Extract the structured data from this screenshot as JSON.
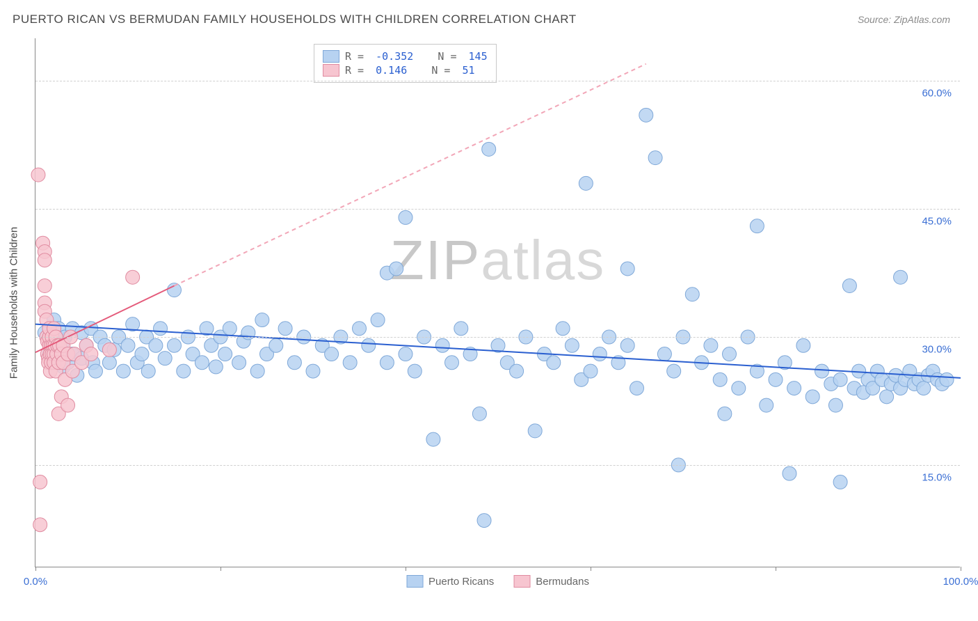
{
  "title": "PUERTO RICAN VS BERMUDAN FAMILY HOUSEHOLDS WITH CHILDREN CORRELATION CHART",
  "source_label": "Source:",
  "source_name": "ZipAtlas.com",
  "watermark": "ZIPatlas",
  "chart": {
    "type": "scatter",
    "y_axis_title": "Family Households with Children",
    "xlim": [
      0,
      100
    ],
    "ylim": [
      3,
      65
    ],
    "x_ticks": [
      0,
      20,
      40,
      60,
      80,
      100
    ],
    "x_tick_labels": [
      "0.0%",
      "",
      "",
      "",
      "",
      "100.0%"
    ],
    "y_ticks": [
      15,
      30,
      45,
      60
    ],
    "y_tick_labels": [
      "15.0%",
      "30.0%",
      "45.0%",
      "60.0%"
    ],
    "grid_color": "#d0d0d0",
    "axis_color": "#888888",
    "background": "#ffffff",
    "series": [
      {
        "name": "Puerto Ricans",
        "fill": "#b7d2f1",
        "stroke": "#7fa8d8",
        "marker_size": 10,
        "marker_opacity": 0.85,
        "R": "-0.352",
        "N": "145",
        "trend": {
          "x1": 0,
          "y1": 31.5,
          "x2": 100,
          "y2": 25.2,
          "color": "#2a5fd0",
          "width": 2,
          "dash": "none"
        },
        "data": [
          [
            1,
            30.5
          ],
          [
            1.5,
            28
          ],
          [
            2,
            32
          ],
          [
            2,
            27
          ],
          [
            2.2,
            29
          ],
          [
            2.5,
            31
          ],
          [
            3,
            26.5
          ],
          [
            3,
            29.5
          ],
          [
            3.2,
            30
          ],
          [
            3.5,
            27
          ],
          [
            4,
            28
          ],
          [
            4,
            31
          ],
          [
            4.5,
            25.5
          ],
          [
            5,
            30.5
          ],
          [
            5,
            27.5
          ],
          [
            5.5,
            29
          ],
          [
            6,
            31
          ],
          [
            6.2,
            27
          ],
          [
            6.5,
            26
          ],
          [
            7,
            30
          ],
          [
            7.5,
            29
          ],
          [
            8,
            27
          ],
          [
            8.5,
            28.5
          ],
          [
            9,
            30
          ],
          [
            9.5,
            26
          ],
          [
            10,
            29
          ],
          [
            10.5,
            31.5
          ],
          [
            11,
            27
          ],
          [
            11.5,
            28
          ],
          [
            12,
            30
          ],
          [
            12.2,
            26
          ],
          [
            13,
            29
          ],
          [
            13.5,
            31
          ],
          [
            14,
            27.5
          ],
          [
            15,
            35.5
          ],
          [
            15,
            29
          ],
          [
            16,
            26
          ],
          [
            16.5,
            30
          ],
          [
            17,
            28
          ],
          [
            18,
            27
          ],
          [
            18.5,
            31
          ],
          [
            19,
            29
          ],
          [
            19.5,
            26.5
          ],
          [
            20,
            30
          ],
          [
            20.5,
            28
          ],
          [
            21,
            31
          ],
          [
            22,
            27
          ],
          [
            22.5,
            29.5
          ],
          [
            23,
            30.5
          ],
          [
            24,
            26
          ],
          [
            24.5,
            32
          ],
          [
            25,
            28
          ],
          [
            26,
            29
          ],
          [
            27,
            31
          ],
          [
            28,
            27
          ],
          [
            29,
            30
          ],
          [
            30,
            26
          ],
          [
            31,
            29
          ],
          [
            32,
            28
          ],
          [
            33,
            30
          ],
          [
            34,
            27
          ],
          [
            35,
            31
          ],
          [
            36,
            29
          ],
          [
            37,
            32
          ],
          [
            38,
            27
          ],
          [
            38,
            37.5
          ],
          [
            39,
            38
          ],
          [
            40,
            44
          ],
          [
            40,
            28
          ],
          [
            41,
            26
          ],
          [
            42,
            30
          ],
          [
            43,
            18
          ],
          [
            44,
            29
          ],
          [
            45,
            27
          ],
          [
            46,
            31
          ],
          [
            47,
            28
          ],
          [
            48,
            21
          ],
          [
            48.5,
            8.5
          ],
          [
            49,
            52
          ],
          [
            50,
            29
          ],
          [
            51,
            27
          ],
          [
            52,
            26
          ],
          [
            53,
            30
          ],
          [
            54,
            19
          ],
          [
            55,
            28
          ],
          [
            56,
            27
          ],
          [
            57,
            31
          ],
          [
            58,
            29
          ],
          [
            59,
            25
          ],
          [
            59.5,
            48
          ],
          [
            60,
            26
          ],
          [
            61,
            28
          ],
          [
            62,
            30
          ],
          [
            63,
            27
          ],
          [
            64,
            29
          ],
          [
            64,
            38
          ],
          [
            65,
            24
          ],
          [
            66,
            56
          ],
          [
            67,
            51
          ],
          [
            68,
            28
          ],
          [
            69,
            26
          ],
          [
            69.5,
            15
          ],
          [
            70,
            30
          ],
          [
            71,
            35
          ],
          [
            72,
            27
          ],
          [
            73,
            29
          ],
          [
            74,
            25
          ],
          [
            74.5,
            21
          ],
          [
            75,
            28
          ],
          [
            76,
            24
          ],
          [
            77,
            30
          ],
          [
            78,
            26
          ],
          [
            78,
            43
          ],
          [
            79,
            22
          ],
          [
            80,
            25
          ],
          [
            81,
            27
          ],
          [
            81.5,
            14
          ],
          [
            82,
            24
          ],
          [
            83,
            29
          ],
          [
            84,
            23
          ],
          [
            85,
            26
          ],
          [
            86,
            24.5
          ],
          [
            86.5,
            22
          ],
          [
            87,
            25
          ],
          [
            87,
            13
          ],
          [
            88,
            36
          ],
          [
            88.5,
            24
          ],
          [
            89,
            26
          ],
          [
            89.5,
            23.5
          ],
          [
            90,
            25
          ],
          [
            90.5,
            24
          ],
          [
            91,
            26
          ],
          [
            91.5,
            25
          ],
          [
            92,
            23
          ],
          [
            92.5,
            24.5
          ],
          [
            93,
            25.5
          ],
          [
            93.5,
            37
          ],
          [
            93.5,
            24
          ],
          [
            94,
            25
          ],
          [
            94.5,
            26
          ],
          [
            95,
            24.5
          ],
          [
            95.5,
            25
          ],
          [
            96,
            24
          ],
          [
            96.5,
            25.5
          ],
          [
            97,
            26
          ],
          [
            97.5,
            25
          ],
          [
            98,
            24.5
          ],
          [
            98.5,
            25
          ]
        ]
      },
      {
        "name": "Bermudans",
        "fill": "#f7c5d0",
        "stroke": "#e08ba0",
        "marker_size": 10,
        "marker_opacity": 0.85,
        "R": "0.146",
        "N": "51",
        "trend": {
          "x1": 0,
          "y1": 28.2,
          "x2": 15,
          "y2": 36,
          "color": "#e45a7a",
          "width": 2,
          "dash": "none",
          "extend": {
            "x2": 66,
            "y2": 62,
            "dash": "6,5",
            "color": "#f2a6b7"
          }
        },
        "data": [
          [
            0.3,
            49
          ],
          [
            0.5,
            13
          ],
          [
            0.5,
            8
          ],
          [
            0.8,
            41
          ],
          [
            1,
            40
          ],
          [
            1,
            39
          ],
          [
            1,
            36
          ],
          [
            1,
            34
          ],
          [
            1,
            33
          ],
          [
            1.2,
            32
          ],
          [
            1.2,
            30
          ],
          [
            1.3,
            29.5
          ],
          [
            1.3,
            28
          ],
          [
            1.4,
            27.5
          ],
          [
            1.4,
            27
          ],
          [
            1.5,
            29
          ],
          [
            1.5,
            30
          ],
          [
            1.5,
            31
          ],
          [
            1.6,
            28
          ],
          [
            1.6,
            26
          ],
          [
            1.7,
            29
          ],
          [
            1.7,
            27
          ],
          [
            1.8,
            30
          ],
          [
            1.8,
            28
          ],
          [
            1.9,
            29
          ],
          [
            2,
            28
          ],
          [
            2,
            27
          ],
          [
            2,
            31
          ],
          [
            2.1,
            29
          ],
          [
            2.2,
            30
          ],
          [
            2.2,
            26
          ],
          [
            2.3,
            28
          ],
          [
            2.4,
            29
          ],
          [
            2.5,
            27
          ],
          [
            2.5,
            21
          ],
          [
            2.6,
            29
          ],
          [
            2.8,
            28
          ],
          [
            2.8,
            23
          ],
          [
            3,
            29
          ],
          [
            3,
            27
          ],
          [
            3.2,
            25
          ],
          [
            3.5,
            28
          ],
          [
            3.5,
            22
          ],
          [
            3.8,
            30
          ],
          [
            4,
            26
          ],
          [
            4.2,
            28
          ],
          [
            5,
            27
          ],
          [
            5.5,
            29
          ],
          [
            6,
            28
          ],
          [
            8,
            28.5
          ],
          [
            10.5,
            37
          ]
        ]
      }
    ],
    "bottom_legend": [
      {
        "label": "Puerto Ricans",
        "fill": "#b7d2f1",
        "stroke": "#7fa8d8"
      },
      {
        "label": "Bermudans",
        "fill": "#f7c5d0",
        "stroke": "#e08ba0"
      }
    ]
  }
}
